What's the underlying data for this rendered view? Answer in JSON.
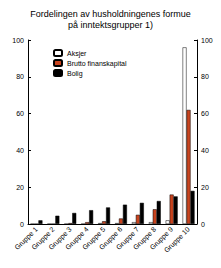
{
  "chart_data": {
    "type": "bar",
    "title": "Fordelingen av husholdningenes formue\npå inntektsgrupper 1)",
    "categories": [
      "Gruppe 1",
      "Gruppe 2",
      "Gruppe 3",
      "Gruppe 4",
      "Gruppe 5",
      "Gruppe 6",
      "Gruppe 7",
      "Gruppe 8",
      "Gruppe 9",
      "Gruppe 10"
    ],
    "series": [
      {
        "name": "Aksjer",
        "color": "#ffffff",
        "values": [
          0,
          0,
          0,
          0,
          0.5,
          0.5,
          1,
          1,
          2,
          96
        ]
      },
      {
        "name": "Brutto finanskapital",
        "color": "#c8431e",
        "values": [
          0,
          0,
          0.5,
          1,
          1.5,
          3,
          5,
          8,
          16,
          62
        ]
      },
      {
        "name": "Bolig",
        "color": "#000000",
        "values": [
          2,
          4.5,
          6,
          7.5,
          9,
          10.5,
          11.5,
          12.5,
          15,
          18
        ]
      }
    ],
    "ylim": [
      0,
      100
    ],
    "yticks": [
      0,
      20,
      40,
      60,
      80,
      100
    ],
    "y2lim": [
      0,
      100
    ],
    "y2ticks": [
      0,
      20,
      40,
      60,
      80,
      100
    ],
    "grid": false,
    "legend": "top-left"
  }
}
